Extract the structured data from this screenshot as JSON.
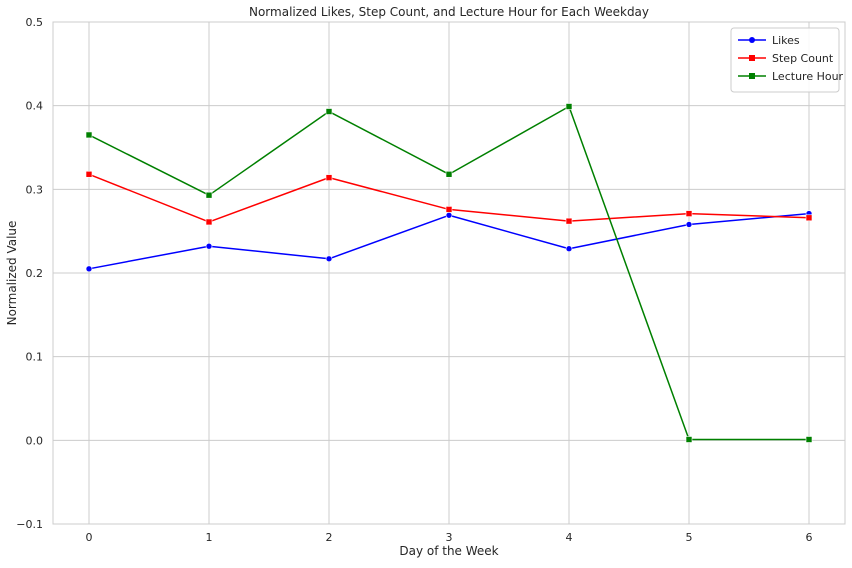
{
  "chart_data": {
    "type": "line",
    "title": "Normalized Likes, Step Count, and Lecture Hour for Each Weekday",
    "xlabel": "Day of the Week",
    "ylabel": "Normalized Value",
    "x": [
      0,
      1,
      2,
      3,
      4,
      5,
      6
    ],
    "xlim": [
      -0.3,
      6.3
    ],
    "ylim": [
      -0.1,
      0.5
    ],
    "xticks": [
      0,
      1,
      2,
      3,
      4,
      5,
      6
    ],
    "yticks": [
      -0.1,
      0.0,
      0.1,
      0.2,
      0.3,
      0.4,
      0.5
    ],
    "xtick_labels": [
      "0",
      "1",
      "2",
      "3",
      "4",
      "5",
      "6"
    ],
    "ytick_labels": [
      "−0.1",
      "0.0",
      "0.1",
      "0.2",
      "0.3",
      "0.4",
      "0.5"
    ],
    "grid": true,
    "legend_position": "top-right",
    "series": [
      {
        "name": "Likes",
        "color": "#0000ff",
        "marker": "circle",
        "values": [
          0.205,
          0.232,
          0.217,
          0.269,
          0.229,
          0.258,
          0.271
        ]
      },
      {
        "name": "Step Count",
        "color": "#ff0000",
        "marker": "square",
        "values": [
          0.318,
          0.261,
          0.314,
          0.276,
          0.262,
          0.271,
          0.266
        ]
      },
      {
        "name": "Lecture Hour",
        "color": "#008000",
        "marker": "square",
        "values": [
          0.365,
          0.293,
          0.393,
          0.318,
          0.399,
          0.001,
          0.001
        ]
      }
    ]
  }
}
